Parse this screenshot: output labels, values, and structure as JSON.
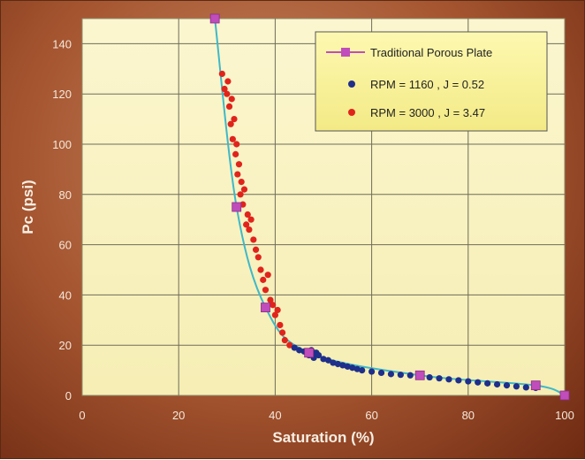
{
  "chart_data": {
    "type": "scatter",
    "title": "",
    "xlabel": "Saturation (%)",
    "ylabel": "Pc (psi)",
    "xlim": [
      0,
      100
    ],
    "ylim": [
      0,
      150
    ],
    "x_ticks": [
      0,
      20,
      40,
      60,
      80,
      100
    ],
    "y_ticks": [
      0,
      20,
      40,
      60,
      80,
      100,
      120,
      140
    ],
    "grid": true,
    "legend_position": "top-right",
    "series": [
      {
        "name": "Traditional Porous Plate",
        "kind": "line-with-square-markers",
        "color": "#c04dbb",
        "line_color": "#40b8c8",
        "x": [
          27.5,
          32,
          38,
          47,
          70,
          94,
          100
        ],
        "y": [
          150,
          75,
          35,
          17,
          8,
          4,
          0
        ]
      },
      {
        "name": "RPM = 1160 , J = 0.52",
        "kind": "scatter",
        "color": "#1f2f8a",
        "x": [
          44,
          45,
          46,
          47,
          47.5,
          48,
          48.5,
          49,
          50,
          51,
          52,
          53,
          54,
          55,
          56,
          57,
          58,
          60,
          62,
          64,
          66,
          68,
          70,
          72,
          74,
          76,
          78,
          80,
          82,
          84,
          86,
          88,
          90,
          92,
          94
        ],
        "y": [
          19,
          18,
          17.5,
          16,
          18,
          15,
          17,
          16,
          14.5,
          14,
          13,
          12.5,
          12,
          11.5,
          11,
          10.5,
          10,
          9.5,
          9,
          8.5,
          8.2,
          8,
          7.6,
          7.2,
          6.8,
          6.4,
          6,
          5.6,
          5.2,
          4.8,
          4.4,
          4,
          3.6,
          3.2,
          3
        ]
      },
      {
        "name": "RPM = 3000 , J = 3.47",
        "kind": "scatter",
        "color": "#e0241c",
        "x": [
          29,
          29.5,
          30,
          30.2,
          30.5,
          30.8,
          31,
          31.2,
          31.5,
          31.8,
          32,
          32.2,
          32.5,
          32.8,
          33,
          33.3,
          33.6,
          34,
          34.3,
          34.6,
          35,
          35.5,
          36,
          36.5,
          37,
          37.5,
          38,
          38.5,
          39,
          39.5,
          40,
          40.5,
          41,
          41.5,
          42,
          43
        ],
        "y": [
          128,
          122,
          120,
          125,
          115,
          108,
          118,
          102,
          110,
          96,
          100,
          88,
          92,
          80,
          85,
          76,
          82,
          68,
          72,
          66,
          70,
          62,
          58,
          55,
          50,
          46,
          42,
          48,
          38,
          36,
          32,
          34,
          28,
          25,
          22,
          20
        ]
      }
    ]
  }
}
